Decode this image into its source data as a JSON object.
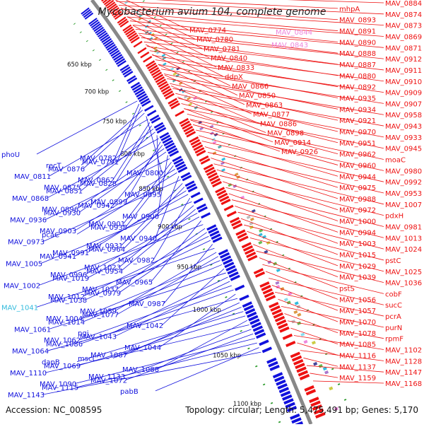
{
  "title": "Mycobacterium avium 104, complete genome",
  "accession": "Accession: NC_008595",
  "footer_info": "Topology: circular; Length: 5,475,491 bp; Genes: 5,170",
  "colors": {
    "forward": "#ee1111",
    "reverse": "#1111dd",
    "backbone": "#888888",
    "rna": "#2a9a2a",
    "highlight_pink": "#ee88dd",
    "highlight_cyan": "#33bbdd"
  },
  "kbp_ticks": [
    "650 kbp",
    "700 kbp",
    "750 kbp",
    "800 kbp",
    "850 kbp",
    "900 kbp",
    "950 kbp",
    "1000 kbp",
    "1050 kbp",
    "1100 kbp"
  ],
  "labels_right": [
    "MAV_0884",
    "mhpA",
    "MAV_0874",
    "MAV_0893",
    "MAV_0873",
    "MAV_0891",
    "MAV_0869",
    "MAV_0890",
    "MAV_0871",
    "MAV_0888",
    "MAV_0912",
    "MAV_0887",
    "MAV_0911",
    "MAV_0880",
    "MAV_0910",
    "MAV_0892",
    "MAV_0909",
    "MAV_0935",
    "MAV_0907",
    "MAV_0934",
    "MAV_0958",
    "MAV_0921",
    "MAV_0943",
    "MAV_0970",
    "MAV_0933",
    "MAV_0951",
    "MAV_0945",
    "MAV_0962",
    "moaC",
    "MAV_0960",
    "MAV_0980",
    "MAV_0944",
    "MAV_0992",
    "MAV_0975",
    "MAV_0953",
    "MAV_0988",
    "MAV_1007",
    "MAV_0972",
    "pdxH",
    "MAV_1000",
    "MAV_0981",
    "MAV_0994",
    "MAV_1013",
    "MAV_1003",
    "MAV_1024",
    "MAV_1015",
    "pstC",
    "MAV_1029",
    "MAV_1025",
    "MAV_1039",
    "MAV_1036",
    "pstS",
    "cobF",
    "MAV_1056",
    "sucC",
    "MAV_1057",
    "pcrA",
    "MAV_1070",
    "purN",
    "MAV_1078",
    "rpmF",
    "MAV_1085",
    "MAV_1102",
    "MAV_1116",
    "MAV_1128",
    "MAV_1137",
    "MAV_1147",
    "MAV_1159",
    "MAV_1168"
  ],
  "labels_inner_right": [
    "MAV_0774",
    "MAV_0780",
    "MAV_0781",
    "MAV_0840",
    "MAV_0833",
    "ddpX",
    "MAV_0866",
    "MAV_0850",
    "MAV_0863",
    "MAV_0877",
    "MAV_0886",
    "MAV_0898",
    "MAV_0914",
    "MAV_0926"
  ],
  "labels_pink": [
    "MAV_0844",
    "MAV_0843"
  ],
  "labels_left": [
    "phoU",
    "MAV_0782",
    "MAV_0791",
    "recT",
    "MAV_0876",
    "MAV_0800",
    "MAV_0811",
    "MAV_0862",
    "MAV_0828",
    "MAV_0875",
    "MAV_0851",
    "MAV_0895",
    "MAV_0868",
    "MAV_0899",
    "MAV_0942",
    "MAV_0896",
    "MAV_0930",
    "MAV_0900",
    "MAV_0936",
    "MAV_0901",
    "MAV_0938",
    "MAV_0903",
    "pcaC",
    "MAV_0940",
    "MAV_0973",
    "MAV_0931",
    "MAV_0964",
    "MAV_0991",
    "MAV_0941",
    "MAV_0982",
    "MAV_1005",
    "MAV_1023",
    "MAV_0954",
    "MAV_0996",
    "MAV_1019",
    "MAV_0965",
    "MAV_1002",
    "MAV_1037",
    "MAV_0979",
    "MAV_1012",
    "MAV_1038",
    "MAV_0987",
    "MAV_1041",
    "MAV_1059",
    "MAV_1077",
    "MAV_1004",
    "MAV_1014",
    "MAV_1042",
    "MAV_1061",
    "pgi",
    "MAV_1043",
    "MAV_1062",
    "MAV_1086",
    "MAV_1044",
    "MAV_1064",
    "MAV_1087",
    "mscL",
    "dapB",
    "MAV_1069",
    "MAV_1088",
    "MAV_1110",
    "MAV_1133",
    "MAV_1072",
    "MAV_1090",
    "MAV_1115",
    "pabB",
    "MAV_1143"
  ]
}
